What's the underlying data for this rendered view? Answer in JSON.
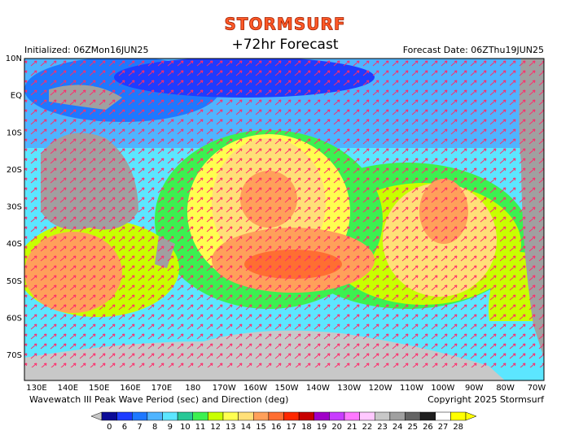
{
  "header": {
    "logo": "STORMSURF",
    "title": "+72hr Forecast",
    "initialized": "Initialized: 06ZMon16JUN25",
    "forecast_date": "Forecast Date: 06ZThu19JUN25"
  },
  "map": {
    "lat_labels": [
      "10N",
      "EQ",
      "10S",
      "20S",
      "30S",
      "40S",
      "50S",
      "60S",
      "70S"
    ],
    "lon_labels": [
      "130E",
      "140E",
      "150E",
      "160E",
      "170E",
      "180",
      "170W",
      "160W",
      "150W",
      "140W",
      "130W",
      "120W",
      "110W",
      "100W",
      "90W",
      "80W",
      "70W"
    ]
  },
  "footer": {
    "description": "Wavewatch III Peak Wave Period (sec) and Direction (deg)",
    "copyright": "Copyright 2025 Stormsurf"
  },
  "legend": {
    "values": [
      0,
      6,
      7,
      8,
      9,
      10,
      11,
      12,
      13,
      14,
      15,
      16,
      17,
      18,
      19,
      20,
      21,
      22,
      23,
      24,
      25,
      26,
      27,
      28
    ],
    "colors": [
      "#0a0a96",
      "#1e3cff",
      "#1e78ff",
      "#4fb4ff",
      "#5ce6ff",
      "#28c896",
      "#3cf050",
      "#c8ff00",
      "#ffff50",
      "#ffe078",
      "#ffa05a",
      "#ff6e32",
      "#ff2800",
      "#c80000",
      "#a000c8",
      "#c83cff",
      "#ff78ff",
      "#ffc8ff",
      "#c8c8c8",
      "#a0a0a0",
      "#646464",
      "#1e1e1e",
      "#ffffff",
      "#ffff00"
    ]
  }
}
